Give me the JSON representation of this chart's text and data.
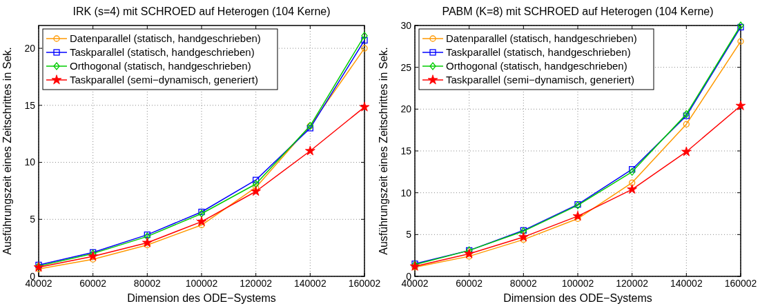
{
  "chart_data": [
    {
      "type": "line",
      "title": "IRK (s=4) mit SCHROED auf Heterogen (104 Kerne)",
      "xlabel": "Dimension des ODE−Systems",
      "ylabel": "Ausführungszeit eines Zeitschrittes in Sek.",
      "x": [
        40002,
        60002,
        80002,
        100002,
        120002,
        140002,
        160002
      ],
      "xlim": [
        40002,
        160002
      ],
      "xticks": [
        40002,
        60002,
        80002,
        100002,
        120002,
        140002,
        160002
      ],
      "ylim": [
        0,
        22
      ],
      "yticks": [
        0,
        5,
        10,
        15,
        20
      ],
      "grid": true,
      "legend": "top left",
      "series": [
        {
          "name": "Datenparallel (statisch, handgeschrieben)",
          "color": "#ff9900",
          "marker": "circle",
          "values": [
            0.65,
            1.5,
            2.75,
            4.5,
            7.8,
            13.2,
            20.0
          ]
        },
        {
          "name": "Taskparallel (statisch, handgeschrieben)",
          "color": "#0000ff",
          "marker": "square",
          "values": [
            1.0,
            2.1,
            3.65,
            5.65,
            8.45,
            13.0,
            20.7
          ]
        },
        {
          "name": "Orthogonal (statisch, handgeschrieben)",
          "color": "#00cc00",
          "marker": "diamond",
          "values": [
            0.9,
            2.0,
            3.5,
            5.5,
            8.1,
            13.2,
            21.1
          ]
        },
        {
          "name": "Taskparallel (semi−dynamisch, generiert)",
          "color": "#ff0000",
          "marker": "star",
          "values": [
            0.8,
            1.75,
            2.95,
            4.8,
            7.45,
            11.0,
            14.85
          ]
        }
      ]
    },
    {
      "type": "line",
      "title": "PABM (K=8) mit SCHROED auf Heterogen (104 Kerne)",
      "xlabel": "Dimension des ODE−Systems",
      "ylabel": "Ausführungszeit eines Zeitschrittes in Sek.",
      "x": [
        40002,
        60002,
        80002,
        100002,
        120002,
        140002,
        160002
      ],
      "xlim": [
        40002,
        160002
      ],
      "xticks": [
        40002,
        60002,
        80002,
        100002,
        120002,
        140002,
        160002
      ],
      "ylim": [
        0,
        30
      ],
      "yticks": [
        0,
        5,
        10,
        15,
        20,
        25,
        30
      ],
      "grid": true,
      "legend": "top left",
      "series": [
        {
          "name": "Datenparallel (statisch, handgeschrieben)",
          "color": "#ff9900",
          "marker": "circle",
          "values": [
            1.1,
            2.4,
            4.4,
            6.9,
            11.2,
            18.2,
            28.1
          ]
        },
        {
          "name": "Taskparallel (statisch, handgeschrieben)",
          "color": "#0000ff",
          "marker": "square",
          "values": [
            1.5,
            3.1,
            5.5,
            8.6,
            12.8,
            19.2,
            29.8
          ]
        },
        {
          "name": "Orthogonal (statisch, handgeschrieben)",
          "color": "#00cc00",
          "marker": "diamond",
          "values": [
            1.4,
            3.1,
            5.4,
            8.5,
            12.5,
            19.4,
            30.0
          ]
        },
        {
          "name": "Taskparallel (semi−dynamisch, generiert)",
          "color": "#ff0000",
          "marker": "star",
          "values": [
            1.2,
            2.7,
            4.7,
            7.2,
            10.4,
            14.9,
            20.4
          ]
        }
      ]
    }
  ]
}
